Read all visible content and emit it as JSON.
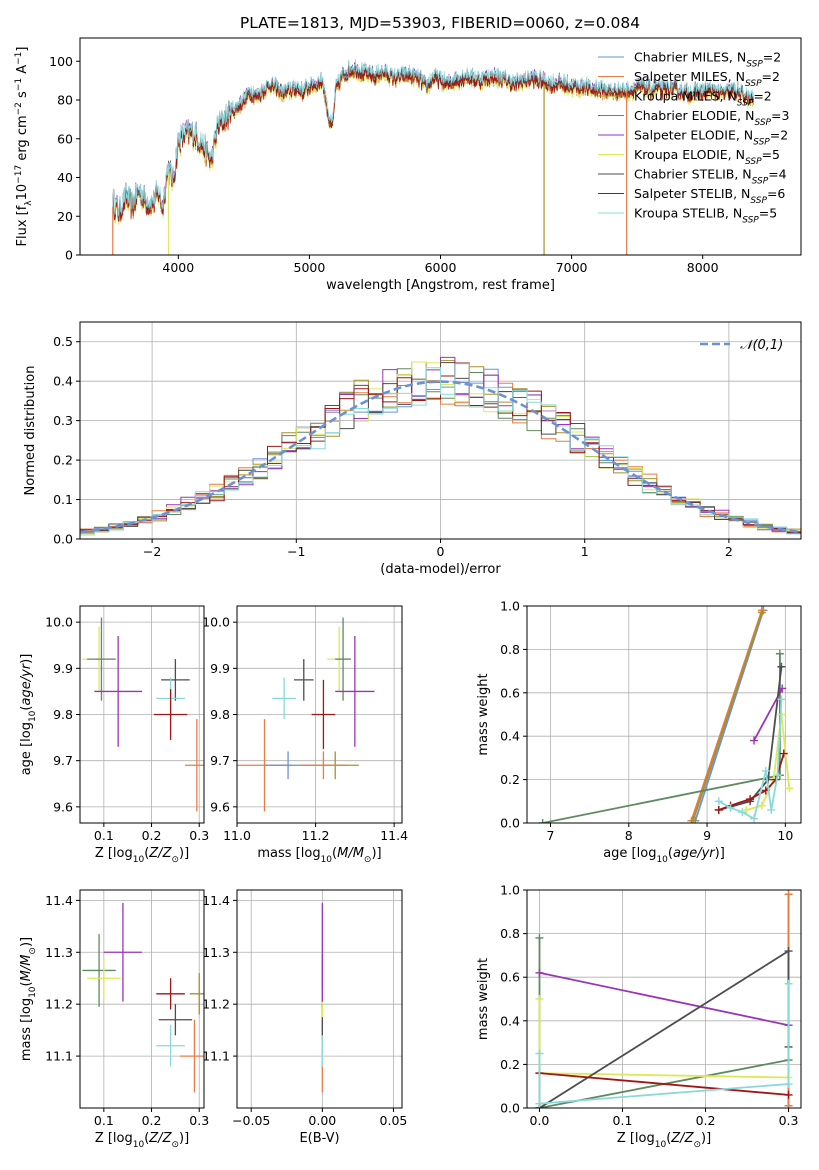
{
  "title": "PLATE=1813, MJD=53903, FIBERID=0060, z=0.084",
  "colors": {
    "Chabrier MILES": "#6a92d6",
    "Salpeter MILES": "#e87c45",
    "Kroupa MILES": "#a8902a",
    "Chabrier ELODIE": "#5f8a5f",
    "Salpeter ELODIE": "#9a35b5",
    "Kroupa ELODIE": "#dde85a",
    "Chabrier STELIB": "#4d4d4d",
    "Salpeter STELIB": "#a01616",
    "Kroupa STELIB": "#8ad9d9"
  },
  "chart_data": [
    {
      "id": "spectrum",
      "type": "line",
      "title": "PLATE=1813, MJD=53903, FIBERID=0060, z=0.084",
      "xlabel": "wavelength [Angstrom, rest frame]",
      "ylabel": "Flux [f_λ10^-17 erg cm^-2 s^-1 A^-1]",
      "xlim": [
        3250,
        8750
      ],
      "ylim": [
        0,
        112
      ],
      "xticks": [
        4000,
        5000,
        6000,
        7000,
        8000
      ],
      "yticks": [
        0,
        20,
        40,
        60,
        80,
        100
      ],
      "legend": "top-right",
      "x": [
        3500,
        3550,
        3600,
        3650,
        3700,
        3750,
        3800,
        3850,
        3880,
        3920,
        3960,
        4000,
        4050,
        4100,
        4150,
        4200,
        4250,
        4300,
        4350,
        4400,
        4450,
        4500,
        4550,
        4600,
        4650,
        4700,
        4750,
        4800,
        4850,
        4900,
        4950,
        5000,
        5050,
        5100,
        5150,
        5175,
        5200,
        5250,
        5300,
        5350,
        5400,
        5450,
        5500,
        5550,
        5600,
        5650,
        5700,
        5750,
        5800,
        5850,
        5893,
        5950,
        6000,
        6050,
        6100,
        6150,
        6200,
        6250,
        6300,
        6350,
        6400,
        6450,
        6500,
        6563,
        6600,
        6650,
        6700,
        6750,
        6800,
        6850,
        6900,
        6950,
        7000,
        7050,
        7100,
        7150,
        7200,
        7250,
        7300,
        7350,
        7400,
        7450,
        7500,
        7550,
        7600,
        7650,
        7700,
        7750,
        7800,
        7850,
        7900,
        7950,
        8000,
        8050,
        8100,
        8150,
        8200,
        8250,
        8300,
        8350
      ],
      "y": [
        27,
        22,
        30,
        25,
        33,
        28,
        26,
        32,
        24,
        45,
        38,
        58,
        62,
        63,
        60,
        55,
        48,
        66,
        70,
        74,
        76,
        80,
        84,
        82,
        85,
        88,
        86,
        83,
        85,
        86,
        84,
        87,
        88,
        90,
        70,
        66,
        85,
        92,
        95,
        96,
        94,
        93,
        92,
        94,
        93,
        91,
        92,
        93,
        92,
        90,
        86,
        92,
        90,
        88,
        90,
        91,
        92,
        91,
        90,
        91,
        92,
        91,
        90,
        88,
        89,
        90,
        91,
        90,
        89,
        88,
        89,
        88,
        87,
        86,
        87,
        85,
        86,
        85,
        84,
        85,
        84,
        85,
        86,
        87,
        85,
        86,
        85,
        86,
        85,
        84,
        83,
        84,
        84,
        85,
        84,
        83,
        84,
        85,
        83,
        80
      ],
      "series": [
        {
          "name": "Chabrier MILES, N_SSP=2",
          "offset": 0.0
        },
        {
          "name": "Salpeter MILES, N_SSP=2",
          "offset": -1.5
        },
        {
          "name": "Kroupa MILES, N_SSP=2",
          "offset": 1.0
        },
        {
          "name": "Chabrier ELODIE, N_SSP=3",
          "offset": -0.8
        },
        {
          "name": "Salpeter ELODIE, N_SSP=2",
          "offset": 1.6
        },
        {
          "name": "Kroupa ELODIE, N_SSP=5",
          "offset": -2.0
        },
        {
          "name": "Chabrier STELIB, N_SSP=4",
          "offset": 0.6
        },
        {
          "name": "Salpeter STELIB, N_SSP=6",
          "offset": -1.0
        },
        {
          "name": "Kroupa STELIB, N_SSP=5",
          "offset": 2.0
        }
      ]
    },
    {
      "id": "residuals",
      "type": "step",
      "xlabel": "(data-model)/error",
      "ylabel": "Normed distribution",
      "xlim": [
        -2.5,
        2.5
      ],
      "ylim": [
        0,
        0.55
      ],
      "xticks": [
        -2,
        -1,
        0,
        1,
        2
      ],
      "yticks": [
        0.0,
        0.1,
        0.2,
        0.3,
        0.4,
        0.5
      ],
      "legend_label": "N(0,1)",
      "legend": "top-right",
      "bin_width": 0.1
    },
    {
      "id": "age-vs-z",
      "type": "errorbar",
      "xlabel": "Z [log10(Z/Z⊙)]",
      "ylabel": "age [log10(age/yr)]",
      "xlim": [
        0.05,
        0.31
      ],
      "ylim": [
        9.565,
        10.035
      ],
      "xticks": [
        0.1,
        0.2,
        0.3
      ],
      "yticks": [
        9.6,
        9.7,
        9.8,
        9.9,
        10.0
      ],
      "points": [
        {
          "name": "Kroupa ELODIE",
          "x": 0.09,
          "y": 9.92,
          "xerr": 0.035,
          "yerr": 0.07
        },
        {
          "name": "Chabrier ELODIE",
          "x": 0.095,
          "y": 9.92,
          "xerr": 0.03,
          "yerr": 0.09
        },
        {
          "name": "Salpeter ELODIE",
          "x": 0.13,
          "y": 9.85,
          "xerr": 0.05,
          "yerr": 0.12
        },
        {
          "name": "Chabrier STELIB",
          "x": 0.25,
          "y": 9.875,
          "xerr": 0.03,
          "yerr": 0.045
        },
        {
          "name": "Kroupa STELIB",
          "x": 0.24,
          "y": 9.835,
          "xerr": 0.03,
          "yerr": 0.045
        },
        {
          "name": "Salpeter STELIB",
          "x": 0.24,
          "y": 9.8,
          "xerr": 0.035,
          "yerr": 0.055
        },
        {
          "name": "Salpeter MILES",
          "x": 0.295,
          "y": 9.69,
          "xerr": 0.025,
          "yerr": 0.1
        }
      ]
    },
    {
      "id": "age-vs-mass",
      "type": "errorbar",
      "xlabel": "mass [log10(M/M⊙)]",
      "ylabel": "",
      "xlim": [
        11.0,
        11.42
      ],
      "ylim": [
        9.565,
        10.035
      ],
      "xticks": [
        11.0,
        11.2,
        11.4
      ],
      "yticks": [
        9.6,
        9.7,
        9.8,
        9.9,
        10.0
      ],
      "points": [
        {
          "name": "Salpeter MILES",
          "x": 11.07,
          "y": 9.69,
          "xerr": 0.07,
          "yerr": 0.1
        },
        {
          "name": "Chabrier MILES",
          "x": 11.13,
          "y": 9.69,
          "xerr": 0.06,
          "yerr": 0.03
        },
        {
          "name": "Kroupa MILES",
          "x": 11.25,
          "y": 9.69,
          "xerr": 0.06,
          "yerr": 0.03
        },
        {
          "name": "Salpeter MILES",
          "x": 11.22,
          "y": 9.69,
          "xerr": 0.06,
          "yerr": 0.03
        },
        {
          "name": "Kroupa STELIB",
          "x": 11.12,
          "y": 9.835,
          "xerr": 0.03,
          "yerr": 0.045
        },
        {
          "name": "Chabrier STELIB",
          "x": 11.17,
          "y": 9.875,
          "xerr": 0.025,
          "yerr": 0.045
        },
        {
          "name": "Salpeter STELIB",
          "x": 11.22,
          "y": 9.8,
          "xerr": 0.03,
          "yerr": 0.075
        },
        {
          "name": "Kroupa ELODIE",
          "x": 11.26,
          "y": 9.92,
          "xerr": 0.03,
          "yerr": 0.07
        },
        {
          "name": "Chabrier ELODIE",
          "x": 11.27,
          "y": 9.92,
          "xerr": 0.02,
          "yerr": 0.09
        },
        {
          "name": "Salpeter ELODIE",
          "x": 11.3,
          "y": 9.85,
          "xerr": 0.05,
          "yerr": 0.12
        }
      ]
    },
    {
      "id": "mass-weight-vs-age",
      "type": "line",
      "xlabel": "age [log10(age/yr)]",
      "ylabel": "mass weight",
      "xlim": [
        6.7,
        10.2
      ],
      "ylim": [
        0,
        1.0
      ],
      "xticks": [
        7,
        8,
        9,
        10
      ],
      "yticks": [
        0.0,
        0.2,
        0.4,
        0.6,
        0.8,
        1.0
      ],
      "series": [
        {
          "name": "Chabrier MILES",
          "x": [
            8.85,
            9.72
          ],
          "y": [
            0.01,
            0.98
          ]
        },
        {
          "name": "Salpeter MILES",
          "x": [
            8.8,
            9.7
          ],
          "y": [
            0.01,
            0.98
          ]
        },
        {
          "name": "Kroupa MILES",
          "x": [
            8.82,
            9.7
          ],
          "y": [
            0.01,
            0.97
          ]
        },
        {
          "name": "Chabrier ELODIE",
          "x": [
            6.9,
            9.93,
            9.93
          ],
          "y": [
            0.0,
            0.22,
            0.78
          ]
        },
        {
          "name": "Salpeter ELODIE",
          "x": [
            9.6,
            9.96
          ],
          "y": [
            0.38,
            0.62
          ]
        },
        {
          "name": "Kroupa ELODIE",
          "x": [
            9.5,
            9.7,
            9.85,
            9.95,
            10.05
          ],
          "y": [
            0.06,
            0.08,
            0.2,
            0.5,
            0.16
          ]
        },
        {
          "name": "Chabrier STELIB",
          "x": [
            9.15,
            9.55,
            9.78,
            9.95
          ],
          "y": [
            0.06,
            0.1,
            0.2,
            0.72
          ]
        },
        {
          "name": "Salpeter STELIB",
          "x": [
            9.15,
            9.3,
            9.55,
            9.75,
            9.88,
            9.98
          ],
          "y": [
            0.06,
            0.08,
            0.11,
            0.15,
            0.2,
            0.32
          ]
        },
        {
          "name": "Kroupa STELIB",
          "x": [
            9.15,
            9.3,
            9.45,
            9.6,
            9.75,
            9.82,
            9.9,
            9.95
          ],
          "y": [
            0.1,
            0.07,
            0.05,
            0.02,
            0.24,
            0.06,
            0.22,
            0.57
          ]
        }
      ]
    },
    {
      "id": "mass-vs-z",
      "type": "errorbar",
      "xlabel": "Z [log10(Z/Z⊙)]",
      "ylabel": "mass [log10(M/M⊙)]",
      "xlim": [
        0.05,
        0.31
      ],
      "ylim": [
        11.0,
        11.42
      ],
      "xticks": [
        0.1,
        0.2,
        0.3
      ],
      "yticks": [
        11.1,
        11.2,
        11.3,
        11.4
      ],
      "points": [
        {
          "name": "Chabrier ELODIE",
          "x": 0.09,
          "y": 11.265,
          "xerr": 0.035,
          "yerr": 0.07
        },
        {
          "name": "Kroupa ELODIE",
          "x": 0.1,
          "y": 11.25,
          "xerr": 0.035,
          "yerr": 0.04
        },
        {
          "name": "Salpeter ELODIE",
          "x": 0.14,
          "y": 11.3,
          "xerr": 0.04,
          "yerr": 0.095
        },
        {
          "name": "Salpeter STELIB",
          "x": 0.24,
          "y": 11.22,
          "xerr": 0.03,
          "yerr": 0.03
        },
        {
          "name": "Chabrier STELIB",
          "x": 0.25,
          "y": 11.17,
          "xerr": 0.035,
          "yerr": 0.03
        },
        {
          "name": "Kroupa STELIB",
          "x": 0.24,
          "y": 11.12,
          "xerr": 0.03,
          "yerr": 0.04
        },
        {
          "name": "Salpeter MILES",
          "x": 0.29,
          "y": 11.1,
          "xerr": 0.03,
          "yerr": 0.07
        },
        {
          "name": "Kroupa MILES",
          "x": 0.3,
          "y": 11.22,
          "xerr": 0.02,
          "yerr": 0.04
        }
      ]
    },
    {
      "id": "mass-vs-ebv",
      "type": "errorbar",
      "xlabel": "E(B-V)",
      "ylabel": "",
      "xlim": [
        -0.06,
        0.056
      ],
      "ylim": [
        11.0,
        11.42
      ],
      "xticks": [
        -0.05,
        0.0,
        0.05
      ],
      "yticks": [
        11.1,
        11.2,
        11.3,
        11.4
      ],
      "points": [
        {
          "name": "Salpeter MILES",
          "x": 0.0,
          "y": 11.1,
          "xerr": 0.0,
          "yerr": 0.07
        },
        {
          "name": "Kroupa STELIB",
          "x": 0.0,
          "y": 11.12,
          "xerr": 0.0,
          "yerr": 0.04
        },
        {
          "name": "Chabrier STELIB",
          "x": 0.0,
          "y": 11.17,
          "xerr": 0.0,
          "yerr": 0.03
        },
        {
          "name": "Salpeter STELIB",
          "x": 0.0,
          "y": 11.22,
          "xerr": 0.0,
          "yerr": 0.03
        },
        {
          "name": "Kroupa ELODIE",
          "x": 0.0,
          "y": 11.25,
          "xerr": 0.0,
          "yerr": 0.075
        },
        {
          "name": "Chabrier ELODIE",
          "x": 0.0,
          "y": 11.265,
          "xerr": 0.0,
          "yerr": 0.03
        },
        {
          "name": "Salpeter ELODIE",
          "x": 0.0,
          "y": 11.3,
          "xerr": 0.0,
          "yerr": 0.095
        }
      ]
    },
    {
      "id": "mass-weight-vs-z",
      "type": "line",
      "xlabel": "Z [log10(Z/Z⊙)]",
      "ylabel": "mass weight",
      "xlim": [
        -0.015,
        0.315
      ],
      "ylim": [
        0,
        1.0
      ],
      "xticks": [
        0.0,
        0.1,
        0.2,
        0.3
      ],
      "yticks": [
        0.0,
        0.2,
        0.4,
        0.6,
        0.8,
        1.0
      ],
      "series": [
        {
          "name": "Chabrier MILES",
          "x": [
            0.3,
            0.3
          ],
          "y": [
            0.01,
            0.98
          ]
        },
        {
          "name": "Salpeter MILES",
          "x": [
            0.3,
            0.3
          ],
          "y": [
            0.01,
            0.98
          ]
        },
        {
          "name": "Chabrier ELODIE",
          "x": [
            0.0,
            0.0,
            0.3
          ],
          "y": [
            0.78,
            0.0,
            0.22
          ]
        },
        {
          "name": "Salpeter ELODIE",
          "x": [
            0.0,
            0.3
          ],
          "y": [
            0.62,
            0.38
          ]
        },
        {
          "name": "Kroupa ELODIE",
          "x": [
            0.0,
            0.0,
            0.3
          ],
          "y": [
            0.5,
            0.16,
            0.14
          ]
        },
        {
          "name": "Chabrier STELIB",
          "x": [
            0.0,
            0.3,
            0.3
          ],
          "y": [
            0.0,
            0.72,
            0.28
          ]
        },
        {
          "name": "Salpeter STELIB",
          "x": [
            0.0,
            0.3
          ],
          "y": [
            0.16,
            0.06
          ]
        },
        {
          "name": "Kroupa STELIB",
          "x": [
            0.0,
            0.0,
            0.3,
            0.3
          ],
          "y": [
            0.25,
            0.02,
            0.11,
            0.57
          ]
        }
      ]
    }
  ]
}
